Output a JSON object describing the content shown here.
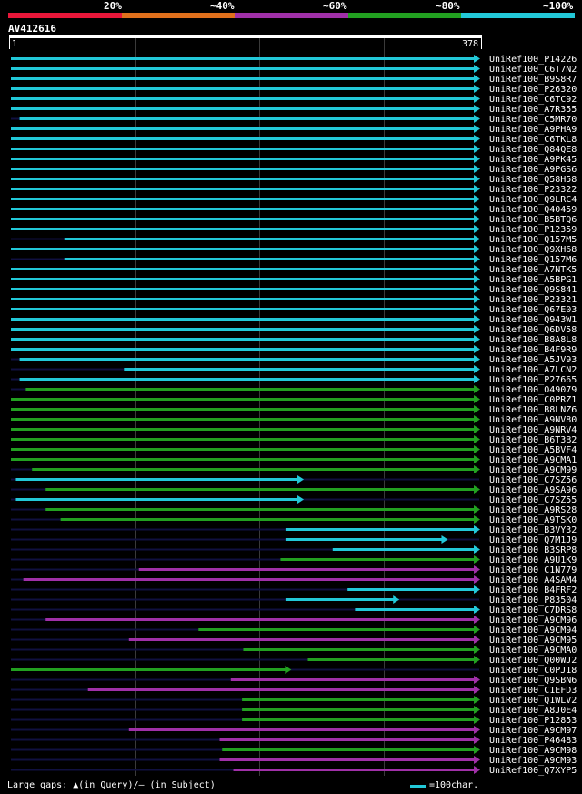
{
  "legend": {
    "labels": [
      "20%",
      "~40%",
      "~60%",
      "~80%",
      "~100%"
    ],
    "colors": [
      "#e8173a",
      "#e0701c",
      "#a030a8",
      "#22a020",
      "#22c8d8"
    ]
  },
  "query": {
    "name": "AV412616",
    "start": "1",
    "end": "378"
  },
  "footer": {
    "gaps_text": "Large gaps: ▲(in Query)/– (in Subject)",
    "scale_text": "=100char."
  },
  "chart_data": {
    "type": "alignment",
    "title": "AV412616",
    "query_length": 378,
    "identity_bins": [
      "20%",
      "~40%",
      "~60%",
      "~80%",
      "~100%"
    ],
    "hits": [
      {
        "name": "UniRef100_P14226",
        "start": 1,
        "end": 378,
        "identity": "~100%"
      },
      {
        "name": "UniRef100_C6T7N2",
        "start": 1,
        "end": 378,
        "identity": "~100%"
      },
      {
        "name": "UniRef100_B9S8R7",
        "start": 1,
        "end": 378,
        "identity": "~100%"
      },
      {
        "name": "UniRef100_P26320",
        "start": 1,
        "end": 378,
        "identity": "~100%"
      },
      {
        "name": "UniRef100_C6TC92",
        "start": 1,
        "end": 378,
        "identity": "~100%"
      },
      {
        "name": "UniRef100_A7R355",
        "start": 1,
        "end": 378,
        "identity": "~100%"
      },
      {
        "name": "UniRef100_C5MR70",
        "start": 8,
        "end": 378,
        "identity": "~100%"
      },
      {
        "name": "UniRef100_A9PHA9",
        "start": 1,
        "end": 378,
        "identity": "~100%"
      },
      {
        "name": "UniRef100_C6TKL8",
        "start": 1,
        "end": 378,
        "identity": "~100%"
      },
      {
        "name": "UniRef100_Q84QE8",
        "start": 1,
        "end": 378,
        "identity": "~100%"
      },
      {
        "name": "UniRef100_A9PK45",
        "start": 1,
        "end": 378,
        "identity": "~100%"
      },
      {
        "name": "UniRef100_A9PGS6",
        "start": 1,
        "end": 378,
        "identity": "~100%"
      },
      {
        "name": "UniRef100_Q58H58",
        "start": 1,
        "end": 378,
        "identity": "~100%"
      },
      {
        "name": "UniRef100_P23322",
        "start": 1,
        "end": 378,
        "identity": "~100%"
      },
      {
        "name": "UniRef100_Q9LRC4",
        "start": 1,
        "end": 378,
        "identity": "~100%"
      },
      {
        "name": "UniRef100_Q40459",
        "start": 1,
        "end": 378,
        "identity": "~100%"
      },
      {
        "name": "UniRef100_B5BTQ6",
        "start": 1,
        "end": 378,
        "identity": "~100%"
      },
      {
        "name": "UniRef100_P12359",
        "start": 1,
        "end": 378,
        "identity": "~100%"
      },
      {
        "name": "UniRef100_Q157M5",
        "start": 44,
        "end": 378,
        "identity": "~100%"
      },
      {
        "name": "UniRef100_Q9XH68",
        "start": 1,
        "end": 378,
        "identity": "~100%"
      },
      {
        "name": "UniRef100_Q157M6",
        "start": 44,
        "end": 378,
        "identity": "~100%"
      },
      {
        "name": "UniRef100_A7NTK5",
        "start": 1,
        "end": 378,
        "identity": "~100%"
      },
      {
        "name": "UniRef100_A5BPG1",
        "start": 1,
        "end": 378,
        "identity": "~100%"
      },
      {
        "name": "UniRef100_Q9S841",
        "start": 1,
        "end": 378,
        "identity": "~100%"
      },
      {
        "name": "UniRef100_P23321",
        "start": 1,
        "end": 378,
        "identity": "~100%"
      },
      {
        "name": "UniRef100_Q67E03",
        "start": 1,
        "end": 378,
        "identity": "~100%"
      },
      {
        "name": "UniRef100_Q943W1",
        "start": 1,
        "end": 378,
        "identity": "~100%"
      },
      {
        "name": "UniRef100_Q6DV58",
        "start": 1,
        "end": 378,
        "identity": "~100%"
      },
      {
        "name": "UniRef100_B8A8L8",
        "start": 1,
        "end": 378,
        "identity": "~100%"
      },
      {
        "name": "UniRef100_B4F9R9",
        "start": 1,
        "end": 378,
        "identity": "~100%"
      },
      {
        "name": "UniRef100_A5JV93",
        "start": 8,
        "end": 378,
        "identity": "~100%"
      },
      {
        "name": "UniRef100_A7LCN2",
        "start": 92,
        "end": 378,
        "identity": "~100%"
      },
      {
        "name": "UniRef100_P27665",
        "start": 8,
        "end": 378,
        "identity": "~100%"
      },
      {
        "name": "UniRef100_O49079",
        "start": 13,
        "end": 378,
        "identity": "~80%"
      },
      {
        "name": "UniRef100_C0PRZ1",
        "start": 1,
        "end": 378,
        "identity": "~80%"
      },
      {
        "name": "UniRef100_B8LNZ6",
        "start": 1,
        "end": 378,
        "identity": "~80%"
      },
      {
        "name": "UniRef100_A9NV80",
        "start": 1,
        "end": 378,
        "identity": "~80%"
      },
      {
        "name": "UniRef100_A9NRV4",
        "start": 1,
        "end": 378,
        "identity": "~80%"
      },
      {
        "name": "UniRef100_B6T3B2",
        "start": 1,
        "end": 378,
        "identity": "~80%"
      },
      {
        "name": "UniRef100_A5BVF4",
        "start": 1,
        "end": 378,
        "identity": "~80%"
      },
      {
        "name": "UniRef100_A9CMA1",
        "start": 1,
        "end": 378,
        "identity": "~80%"
      },
      {
        "name": "UniRef100_A9CM99",
        "start": 18,
        "end": 378,
        "identity": "~80%"
      },
      {
        "name": "UniRef100_C7SZ56",
        "start": 5,
        "end": 236,
        "identity": "~100%"
      },
      {
        "name": "UniRef100_A9SA96",
        "start": 29,
        "end": 378,
        "identity": "~80%"
      },
      {
        "name": "UniRef100_C7SZ55",
        "start": 5,
        "end": 236,
        "identity": "~100%"
      },
      {
        "name": "UniRef100_A9RS28",
        "start": 29,
        "end": 378,
        "identity": "~80%"
      },
      {
        "name": "UniRef100_A9TSK0",
        "start": 41,
        "end": 378,
        "identity": "~80%"
      },
      {
        "name": "UniRef100_B3VY32",
        "start": 222,
        "end": 378,
        "identity": "~100%"
      },
      {
        "name": "UniRef100_Q7M1J9",
        "start": 222,
        "end": 352,
        "identity": "~100%"
      },
      {
        "name": "UniRef100_B3SRP8",
        "start": 260,
        "end": 378,
        "identity": "~100%"
      },
      {
        "name": "UniRef100_A9U1K9",
        "start": 218,
        "end": 378,
        "identity": "~80%"
      },
      {
        "name": "UniRef100_C1N779",
        "start": 104,
        "end": 378,
        "identity": "~60%"
      },
      {
        "name": "UniRef100_A4SAM4",
        "start": 11,
        "end": 378,
        "identity": "~60%"
      },
      {
        "name": "UniRef100_B4FRF2",
        "start": 272,
        "end": 378,
        "identity": "~100%"
      },
      {
        "name": "UniRef100_P83504",
        "start": 222,
        "end": 313,
        "identity": "~100%"
      },
      {
        "name": "UniRef100_C7DRS8",
        "start": 278,
        "end": 378,
        "identity": "~100%"
      },
      {
        "name": "UniRef100_A9CM96",
        "start": 29,
        "end": 378,
        "identity": "~60%"
      },
      {
        "name": "UniRef100_A9CM94",
        "start": 152,
        "end": 378,
        "identity": "~80%"
      },
      {
        "name": "UniRef100_A9CM95",
        "start": 96,
        "end": 378,
        "identity": "~60%"
      },
      {
        "name": "UniRef100_A9CMA0",
        "start": 188,
        "end": 378,
        "identity": "~80%"
      },
      {
        "name": "UniRef100_Q00WJ2",
        "start": 240,
        "end": 378,
        "identity": "~80%"
      },
      {
        "name": "UniRef100_C0PJ18",
        "start": 1,
        "end": 226,
        "identity": "~80%"
      },
      {
        "name": "UniRef100_Q9SBN6",
        "start": 178,
        "end": 378,
        "identity": "~60%"
      },
      {
        "name": "UniRef100_C1EFD3",
        "start": 63,
        "end": 378,
        "identity": "~60%"
      },
      {
        "name": "UniRef100_Q1WLV2",
        "start": 187,
        "end": 378,
        "identity": "~80%"
      },
      {
        "name": "UniRef100_A8J0E4",
        "start": 187,
        "end": 378,
        "identity": "~80%"
      },
      {
        "name": "UniRef100_P12853",
        "start": 187,
        "end": 378,
        "identity": "~80%"
      },
      {
        "name": "UniRef100_A9CM97",
        "start": 96,
        "end": 378,
        "identity": "~60%"
      },
      {
        "name": "UniRef100_P46483",
        "start": 169,
        "end": 378,
        "identity": "~60%"
      },
      {
        "name": "UniRef100_A9CM98",
        "start": 171,
        "end": 378,
        "identity": "~80%"
      },
      {
        "name": "UniRef100_A9CM93",
        "start": 169,
        "end": 378,
        "identity": "~60%"
      },
      {
        "name": "UniRef100_Q7XYP5",
        "start": 180,
        "end": 378,
        "identity": "~60%"
      }
    ]
  }
}
